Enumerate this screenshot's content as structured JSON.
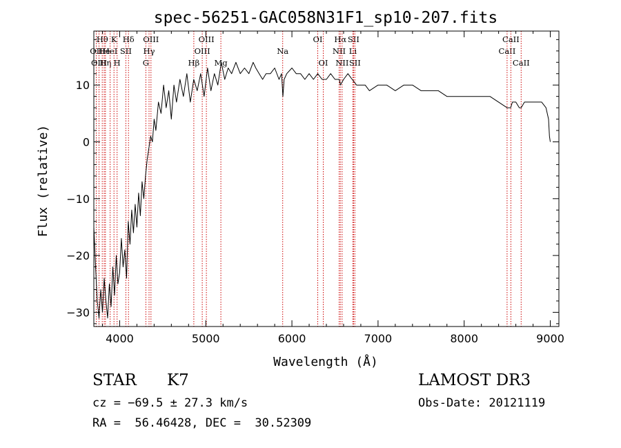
{
  "chart_data": {
    "type": "line",
    "title": "spec-56251-GAC058N31F1_sp10-207.fits",
    "xlabel": "Wavelength (Å)",
    "ylabel": "Flux (relative)",
    "xlim": [
      3700,
      9100
    ],
    "ylim": [
      -32.5,
      19.5
    ],
    "x_ticks": [
      4000,
      5000,
      6000,
      7000,
      8000,
      9000
    ],
    "y_ticks": [
      -30,
      -20,
      -10,
      0,
      10
    ],
    "grid": false,
    "series": [
      {
        "color": "#000000",
        "x": [
          3700,
          3720,
          3740,
          3760,
          3780,
          3800,
          3820,
          3840,
          3860,
          3880,
          3900,
          3920,
          3940,
          3960,
          3980,
          4000,
          4020,
          4040,
          4060,
          4080,
          4100,
          4120,
          4140,
          4160,
          4180,
          4200,
          4220,
          4240,
          4260,
          4280,
          4300,
          4320,
          4340,
          4360,
          4380,
          4400,
          4420,
          4450,
          4480,
          4510,
          4540,
          4570,
          4600,
          4630,
          4660,
          4700,
          4740,
          4780,
          4820,
          4860,
          4900,
          4940,
          4980,
          5020,
          5060,
          5100,
          5140,
          5180,
          5220,
          5260,
          5300,
          5350,
          5400,
          5450,
          5500,
          5550,
          5580,
          5620,
          5660,
          5700,
          5750,
          5800,
          5850,
          5880,
          5895,
          5910,
          5940,
          6000,
          6050,
          6100,
          6150,
          6200,
          6250,
          6300,
          6350,
          6400,
          6450,
          6500,
          6550,
          6563,
          6600,
          6650,
          6700,
          6750,
          6800,
          6850,
          6900,
          7000,
          7100,
          7200,
          7300,
          7400,
          7500,
          7600,
          7700,
          7800,
          7900,
          8000,
          8100,
          8200,
          8300,
          8400,
          8498,
          8540,
          8560,
          8600,
          8640,
          8662,
          8700,
          8800,
          8900,
          8950,
          8980,
          8990,
          9000
        ],
        "y": [
          -15,
          -22,
          -28,
          -31,
          -26,
          -30,
          -24,
          -28,
          -31,
          -25,
          -29,
          -22,
          -27,
          -20,
          -25,
          -23,
          -17,
          -22,
          -19,
          -24,
          -14,
          -18,
          -12,
          -16,
          -11,
          -15,
          -9,
          -13,
          -7,
          -10,
          -6,
          -3,
          -1,
          1,
          0,
          4,
          2,
          7,
          5,
          10,
          6,
          9,
          4,
          10,
          7,
          11,
          8,
          12,
          7,
          11,
          9,
          12,
          8,
          13,
          9,
          12,
          10,
          14,
          11,
          13,
          12,
          14,
          12,
          13,
          12,
          14,
          13,
          12,
          11,
          12,
          12,
          13,
          11,
          12,
          8,
          11,
          12,
          13,
          12,
          12,
          11,
          12,
          11,
          12,
          11,
          11,
          12,
          11,
          11,
          10,
          11,
          12,
          11,
          10,
          10,
          10,
          9,
          10,
          10,
          9,
          10,
          10,
          9,
          9,
          9,
          8,
          8,
          8,
          8,
          8,
          8,
          7,
          6,
          6,
          7,
          7,
          6,
          6,
          7,
          7,
          7,
          6,
          4,
          1,
          0
        ]
      }
    ],
    "lines": [
      {
        "wl": 3728,
        "label": "OII",
        "row": 2
      },
      {
        "wl": 3760,
        "label": "OIII",
        "row": 3
      },
      {
        "wl": 3798,
        "label": "Hθ",
        "row": 1
      },
      {
        "wl": 3820,
        "label": "He",
        "row": 2
      },
      {
        "wl": 3835,
        "label": "Hη",
        "row": 3
      },
      {
        "wl": 3889,
        "label": "HeI",
        "row": 2
      },
      {
        "wl": 3934,
        "label": "K",
        "row": 1
      },
      {
        "wl": 3970,
        "label": "H",
        "row": 3
      },
      {
        "wl": 4072,
        "label": "SII",
        "row": 2
      },
      {
        "wl": 4102,
        "label": "Hδ",
        "row": 1
      },
      {
        "wl": 4304,
        "label": "G",
        "row": 3
      },
      {
        "wl": 4341,
        "label": "Hγ",
        "row": 2
      },
      {
        "wl": 4363,
        "label": "OIII",
        "row": 1
      },
      {
        "wl": 4861,
        "label": "Hβ",
        "row": 3
      },
      {
        "wl": 4959,
        "label": "OIII",
        "row": 2
      },
      {
        "wl": 5007,
        "label": "OIII",
        "row": 1
      },
      {
        "wl": 5175,
        "label": "Mg",
        "row": 3
      },
      {
        "wl": 5893,
        "label": "Na",
        "row": 2
      },
      {
        "wl": 6300,
        "label": "OI",
        "row": 1
      },
      {
        "wl": 6364,
        "label": "OI",
        "row": 3
      },
      {
        "wl": 6548,
        "label": "NII",
        "row": 2
      },
      {
        "wl": 6563,
        "label": "Hα",
        "row": 1
      },
      {
        "wl": 6583,
        "label": "NII",
        "row": 3
      },
      {
        "wl": 6708,
        "label": "Li",
        "row": 2
      },
      {
        "wl": 6716,
        "label": "SII",
        "row": 1
      },
      {
        "wl": 6731,
        "label": "SII",
        "row": 3
      },
      {
        "wl": 8498,
        "label": "CaII",
        "row": 2
      },
      {
        "wl": 8542,
        "label": "CaII",
        "row": 1
      },
      {
        "wl": 8662,
        "label": "CaII",
        "row": 3
      }
    ]
  },
  "info": {
    "class": "STAR",
    "subclass": "K7",
    "survey": "LAMOST DR3",
    "cz": "cz = −69.5 ± 27.3 km/s",
    "obs_date": "Obs-Date: 20121119",
    "coords": "RA =  56.46428, DEC =  30.52309"
  }
}
